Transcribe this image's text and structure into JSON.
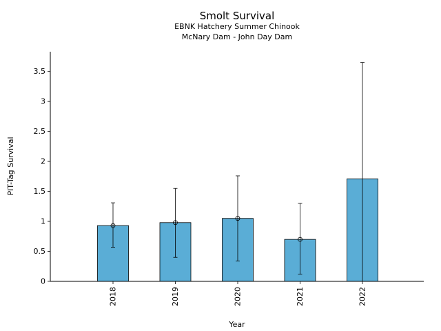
{
  "chart_data": {
    "type": "bar",
    "title": "Smolt Survival",
    "subtitle_lines": [
      "EBNK Hatchery Summer Chinook",
      "McNary Dam - John Day Dam"
    ],
    "xlabel": "Year",
    "ylabel": "PIT-Tag Survival",
    "categories": [
      "2018",
      "2019",
      "2020",
      "2021",
      "2022"
    ],
    "values": [
      0.93,
      0.98,
      1.05,
      0.7,
      1.71
    ],
    "error_low": [
      0.57,
      0.4,
      0.34,
      0.12,
      0.0
    ],
    "error_high": [
      1.31,
      1.55,
      1.76,
      1.3,
      3.65
    ],
    "point_markers": [
      true,
      true,
      true,
      true,
      false
    ],
    "ylim": [
      0,
      3.83
    ],
    "yticks": [
      0,
      0.5,
      1,
      1.5,
      2,
      2.5,
      3,
      3.5
    ],
    "ytick_labels": [
      "0",
      "0.5",
      "1",
      "1.5",
      "2",
      "2.5",
      "3",
      "3.5"
    ],
    "grid": false,
    "colors": {
      "bar": "#5aadd6",
      "edge": "#000000"
    }
  }
}
